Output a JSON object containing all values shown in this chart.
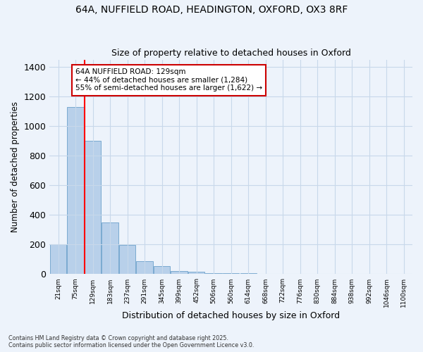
{
  "title_line1": "64A, NUFFIELD ROAD, HEADINGTON, OXFORD, OX3 8RF",
  "title_line2": "Size of property relative to detached houses in Oxford",
  "xlabel": "Distribution of detached houses by size in Oxford",
  "ylabel": "Number of detached properties",
  "categories": [
    "21sqm",
    "75sqm",
    "129sqm",
    "183sqm",
    "237sqm",
    "291sqm",
    "345sqm",
    "399sqm",
    "452sqm",
    "506sqm",
    "560sqm",
    "614sqm",
    "668sqm",
    "722sqm",
    "776sqm",
    "830sqm",
    "884sqm",
    "938sqm",
    "992sqm",
    "1046sqm",
    "1100sqm"
  ],
  "values": [
    200,
    1130,
    900,
    350,
    195,
    90,
    55,
    20,
    15,
    8,
    5,
    5,
    0,
    0,
    0,
    0,
    0,
    0,
    0,
    0,
    0
  ],
  "bar_color": "#b8d0ea",
  "bar_edge_color": "#7aaad0",
  "grid_color": "#c8d8ea",
  "bg_color": "#edf3fb",
  "plot_bg_color": "#edf3fb",
  "red_line_index": 2,
  "annotation_text": "64A NUFFIELD ROAD: 129sqm\n← 44% of detached houses are smaller (1,284)\n55% of semi-detached houses are larger (1,622) →",
  "annotation_box_color": "#ffffff",
  "annotation_box_edge": "#cc0000",
  "footer_line1": "Contains HM Land Registry data © Crown copyright and database right 2025.",
  "footer_line2": "Contains public sector information licensed under the Open Government Licence v3.0.",
  "ylim": [
    0,
    1450
  ],
  "yticks": [
    0,
    200,
    400,
    600,
    800,
    1000,
    1200,
    1400
  ]
}
